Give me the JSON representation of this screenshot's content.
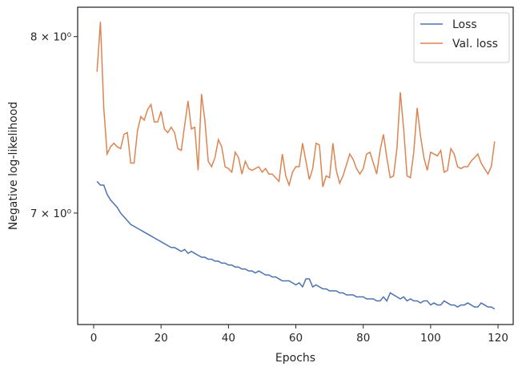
{
  "chart_data": {
    "type": "line",
    "xlabel": "Epochs",
    "ylabel": "Negative log-likelihood",
    "x": [
      1,
      2,
      3,
      4,
      5,
      6,
      7,
      8,
      9,
      10,
      11,
      12,
      13,
      14,
      15,
      16,
      17,
      18,
      19,
      20,
      21,
      22,
      23,
      24,
      25,
      26,
      27,
      28,
      29,
      30,
      31,
      32,
      33,
      34,
      35,
      36,
      37,
      38,
      39,
      40,
      41,
      42,
      43,
      44,
      45,
      46,
      47,
      48,
      49,
      50,
      51,
      52,
      53,
      54,
      55,
      56,
      57,
      58,
      59,
      60,
      61,
      62,
      63,
      64,
      65,
      66,
      67,
      68,
      69,
      70,
      71,
      72,
      73,
      74,
      75,
      76,
      77,
      78,
      79,
      80,
      81,
      82,
      83,
      84,
      85,
      86,
      87,
      88,
      89,
      90,
      91,
      92,
      93,
      94,
      95,
      96,
      97,
      98,
      99,
      100,
      101,
      102,
      103,
      104,
      105,
      106,
      107,
      108,
      109,
      110,
      111,
      112,
      113,
      114,
      115,
      116,
      117,
      118,
      119
    ],
    "series": [
      {
        "name": "Loss",
        "color": "#4c72b0",
        "values": [
          7.17,
          7.15,
          7.15,
          7.1,
          7.07,
          7.05,
          7.03,
          7.0,
          6.98,
          6.96,
          6.94,
          6.93,
          6.92,
          6.91,
          6.9,
          6.89,
          6.88,
          6.87,
          6.86,
          6.85,
          6.84,
          6.83,
          6.82,
          6.82,
          6.81,
          6.8,
          6.81,
          6.79,
          6.8,
          6.79,
          6.78,
          6.77,
          6.77,
          6.76,
          6.76,
          6.75,
          6.75,
          6.74,
          6.74,
          6.73,
          6.73,
          6.72,
          6.72,
          6.71,
          6.71,
          6.7,
          6.7,
          6.69,
          6.7,
          6.69,
          6.68,
          6.68,
          6.67,
          6.67,
          6.66,
          6.65,
          6.65,
          6.65,
          6.64,
          6.63,
          6.64,
          6.62,
          6.66,
          6.66,
          6.62,
          6.63,
          6.62,
          6.61,
          6.61,
          6.6,
          6.6,
          6.6,
          6.59,
          6.59,
          6.58,
          6.58,
          6.58,
          6.57,
          6.57,
          6.57,
          6.56,
          6.56,
          6.56,
          6.55,
          6.55,
          6.57,
          6.55,
          6.59,
          6.58,
          6.57,
          6.56,
          6.57,
          6.55,
          6.56,
          6.55,
          6.55,
          6.54,
          6.55,
          6.55,
          6.53,
          6.54,
          6.53,
          6.53,
          6.55,
          6.54,
          6.53,
          6.53,
          6.52,
          6.53,
          6.53,
          6.54,
          6.53,
          6.52,
          6.52,
          6.54,
          6.53,
          6.52,
          6.52,
          6.51
        ]
      },
      {
        "name": "Val. loss",
        "color": "#dd8452",
        "values": [
          7.79,
          8.09,
          7.58,
          7.32,
          7.36,
          7.38,
          7.36,
          7.35,
          7.43,
          7.44,
          7.27,
          7.27,
          7.45,
          7.53,
          7.51,
          7.57,
          7.6,
          7.5,
          7.5,
          7.56,
          7.46,
          7.44,
          7.47,
          7.44,
          7.35,
          7.34,
          7.48,
          7.62,
          7.46,
          7.47,
          7.23,
          7.66,
          7.51,
          7.28,
          7.25,
          7.3,
          7.4,
          7.36,
          7.25,
          7.24,
          7.22,
          7.33,
          7.3,
          7.21,
          7.28,
          7.24,
          7.23,
          7.24,
          7.25,
          7.22,
          7.24,
          7.21,
          7.21,
          7.19,
          7.17,
          7.32,
          7.2,
          7.15,
          7.22,
          7.25,
          7.25,
          7.38,
          7.28,
          7.18,
          7.24,
          7.38,
          7.37,
          7.14,
          7.2,
          7.19,
          7.38,
          7.23,
          7.16,
          7.2,
          7.26,
          7.32,
          7.29,
          7.24,
          7.21,
          7.24,
          7.32,
          7.33,
          7.27,
          7.21,
          7.34,
          7.43,
          7.3,
          7.19,
          7.2,
          7.35,
          7.67,
          7.46,
          7.2,
          7.19,
          7.33,
          7.58,
          7.42,
          7.3,
          7.23,
          7.33,
          7.32,
          7.31,
          7.34,
          7.22,
          7.23,
          7.35,
          7.32,
          7.25,
          7.24,
          7.25,
          7.25,
          7.28,
          7.3,
          7.32,
          7.27,
          7.24,
          7.21,
          7.25,
          7.39
        ]
      }
    ],
    "xlim": [
      -4.75,
      124.5
    ],
    "xticks": [
      0,
      20,
      40,
      60,
      80,
      100,
      120
    ],
    "ylim": [
      6.434,
      8.18
    ],
    "yscale": "log",
    "yticks": [
      {
        "value": 7,
        "label": "7 × 10⁰"
      },
      {
        "value": 8,
        "label": "8 × 10⁰"
      }
    ],
    "legend": "upper right"
  }
}
